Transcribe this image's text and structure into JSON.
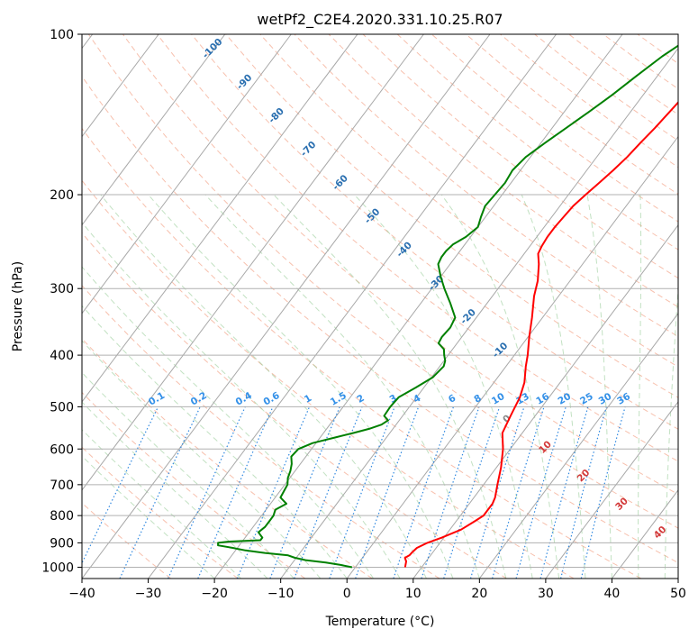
{
  "chart_data": {
    "type": "line",
    "title": "wetPf2_C2E4.2020.331.10.25.R07",
    "xlabel": "Temperature (°C)",
    "ylabel": "Pressure (hPa)",
    "xlim": [
      -40,
      50
    ],
    "ylim": [
      1050,
      100
    ],
    "y_scale": "log",
    "grid": true,
    "x_ticks": [
      "−40",
      "−30",
      "−20",
      "−10",
      "0",
      "10",
      "20",
      "30",
      "40",
      "50"
    ],
    "y_ticks": [
      "100",
      "200",
      "300",
      "400",
      "500",
      "600",
      "700",
      "800",
      "900",
      "1000"
    ],
    "isotherm_labels": [
      "-100",
      "-90",
      "-80",
      "-70",
      "-60",
      "-50",
      "-40",
      "-30",
      "-20",
      "-10"
    ],
    "mixing_ratio_labels": [
      "0.1",
      "0.2",
      "0.4",
      "0.6",
      "1",
      "1.5",
      "2",
      "3",
      "4",
      "6",
      "8",
      "10",
      "13",
      "16",
      "20",
      "25",
      "30",
      "36"
    ],
    "moist_adiabat_labels": [
      "0",
      "10",
      "20",
      "30",
      "40"
    ],
    "series": [
      {
        "color": "#ff0000",
        "pressure": [
          1000,
          975,
          960,
          950,
          935,
          920,
          900,
          880,
          850,
          820,
          800,
          760,
          740,
          700,
          650,
          600,
          560,
          520,
          480,
          450,
          420,
          400,
          370,
          340,
          310,
          290,
          270,
          258,
          250,
          240,
          230,
          220,
          210,
          200,
          190,
          180,
          170,
          160,
          150,
          140,
          130,
          120,
          110,
          100
        ],
        "temperature": [
          7.5,
          7.0,
          6.4,
          6.8,
          6.9,
          7.1,
          8.1,
          9.7,
          11.7,
          12.8,
          13.5,
          13.5,
          13.2,
          12.1,
          10.7,
          8.9,
          7.0,
          6.3,
          5.6,
          4.6,
          3.0,
          2.0,
          0.2,
          -1.6,
          -3.7,
          -4.9,
          -6.6,
          -7.9,
          -8.2,
          -8.4,
          -8.4,
          -8.2,
          -8.0,
          -7.4,
          -6.7,
          -6.0,
          -5.4,
          -5.0,
          -4.5,
          -4.1,
          -3.7,
          -3.3,
          -2.9,
          -2.5
        ]
      },
      {
        "color": "#008000",
        "pressure": [
          1000,
          990,
          980,
          970,
          960,
          950,
          940,
          930,
          920,
          910,
          900,
          895,
          890,
          880,
          860,
          840,
          820,
          800,
          780,
          760,
          740,
          720,
          700,
          680,
          660,
          640,
          620,
          600,
          585,
          570,
          560,
          550,
          540,
          530,
          520,
          500,
          480,
          460,
          440,
          420,
          410,
          400,
          390,
          380,
          370,
          355,
          340,
          320,
          300,
          285,
          270,
          262,
          255,
          248,
          240,
          230,
          220,
          210,
          200,
          190,
          180,
          170,
          160,
          150,
          140,
          130,
          120,
          110,
          100
        ],
        "temperature": [
          -0.5,
          -2.5,
          -5.0,
          -8.3,
          -10.2,
          -11.5,
          -15.3,
          -18.5,
          -20.7,
          -23.2,
          -23.5,
          -22.0,
          -17.4,
          -17.4,
          -18.6,
          -18.2,
          -18.2,
          -18.2,
          -18.6,
          -17.6,
          -19.2,
          -19.4,
          -19.6,
          -20.3,
          -20.7,
          -21.3,
          -22.2,
          -22.0,
          -20.5,
          -17.6,
          -15.5,
          -13.6,
          -12.2,
          -11.7,
          -12.8,
          -12.9,
          -12.7,
          -11.2,
          -9.8,
          -9.4,
          -9.8,
          -10.6,
          -11.3,
          -12.8,
          -13.0,
          -12.8,
          -13.2,
          -15.5,
          -18.1,
          -20.0,
          -21.8,
          -22.1,
          -22.1,
          -21.8,
          -20.7,
          -20.0,
          -20.7,
          -21.3,
          -21.1,
          -20.9,
          -21.2,
          -20.7,
          -19.4,
          -17.9,
          -16.3,
          -14.7,
          -13.2,
          -11.5,
          -9.0
        ]
      }
    ]
  }
}
